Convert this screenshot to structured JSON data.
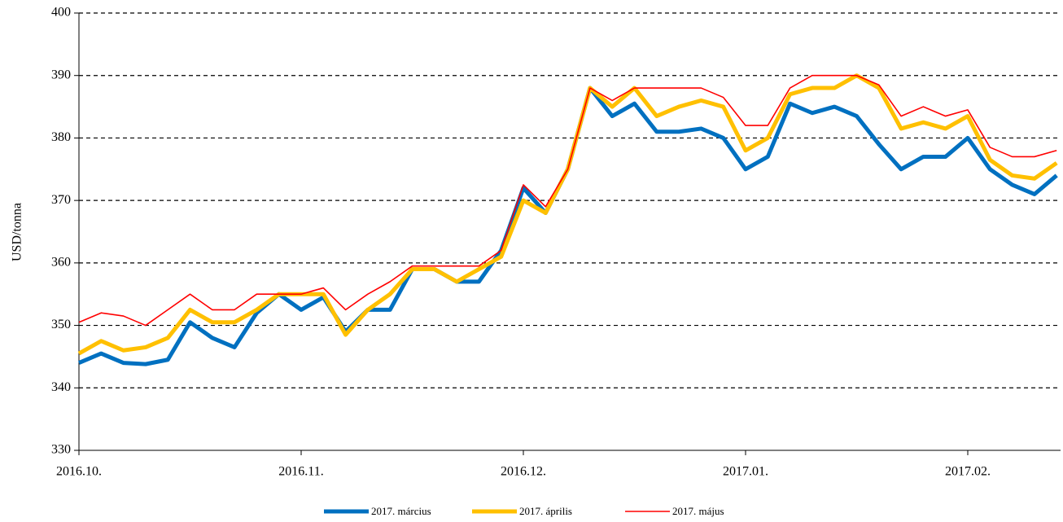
{
  "chart_data": {
    "type": "line",
    "y_label": "USD/tonna",
    "categories": [
      "2016.10.",
      null,
      null,
      null,
      null,
      null,
      null,
      null,
      null,
      null,
      "2016.11.",
      null,
      null,
      null,
      null,
      null,
      null,
      null,
      null,
      null,
      "2016.12.",
      null,
      null,
      null,
      null,
      null,
      null,
      null,
      null,
      null,
      "2017.01.",
      null,
      null,
      null,
      null,
      null,
      null,
      null,
      null,
      null,
      "2017.02.",
      null,
      null,
      null,
      null
    ],
    "series": [
      {
        "name": "2017. március",
        "color": "#0070c0",
        "width": 5,
        "values": [
          344,
          345.5,
          344,
          343.8,
          344.5,
          350.5,
          348,
          346.5,
          352,
          355,
          352.5,
          354.5,
          349,
          352.5,
          352.5,
          359,
          359,
          357,
          357,
          362,
          372,
          368,
          375,
          388,
          383.5,
          385.5,
          381,
          381,
          381.5,
          380,
          375,
          377,
          385.5,
          384,
          385,
          383.5,
          379,
          375,
          377,
          377,
          380,
          375,
          372.5,
          371,
          374
        ]
      },
      {
        "name": "2017. április",
        "color": "#ffc000",
        "width": 5,
        "values": [
          345.5,
          347.5,
          346,
          346.5,
          348,
          352.5,
          350.5,
          350.5,
          352.5,
          355,
          355,
          355,
          348.5,
          352.5,
          355,
          359,
          359,
          357,
          359,
          361,
          370,
          368,
          375,
          388,
          385,
          388,
          383.5,
          385,
          386,
          385,
          378,
          380,
          387,
          388,
          388,
          390,
          388,
          381.5,
          382.5,
          381.5,
          383.5,
          376.5,
          374,
          373.5,
          376
        ]
      },
      {
        "name": "2017. május",
        "color": "#ff0000",
        "width": 1.6,
        "values": [
          350.5,
          352,
          351.5,
          350,
          352.5,
          355,
          352.5,
          352.5,
          355,
          355,
          355,
          356,
          352.5,
          355,
          357,
          359.5,
          359.5,
          359.5,
          359.5,
          362,
          372.5,
          369,
          375,
          388,
          386,
          388,
          388,
          388,
          388,
          386.5,
          382,
          382,
          388,
          390,
          390,
          390,
          388.5,
          383.5,
          385,
          383.5,
          384.5,
          378.5,
          377,
          377,
          378
        ]
      }
    ],
    "ylim": [
      330,
      400
    ],
    "yticks": [
      330,
      340,
      350,
      360,
      370,
      380,
      390,
      400
    ],
    "grid": true
  }
}
